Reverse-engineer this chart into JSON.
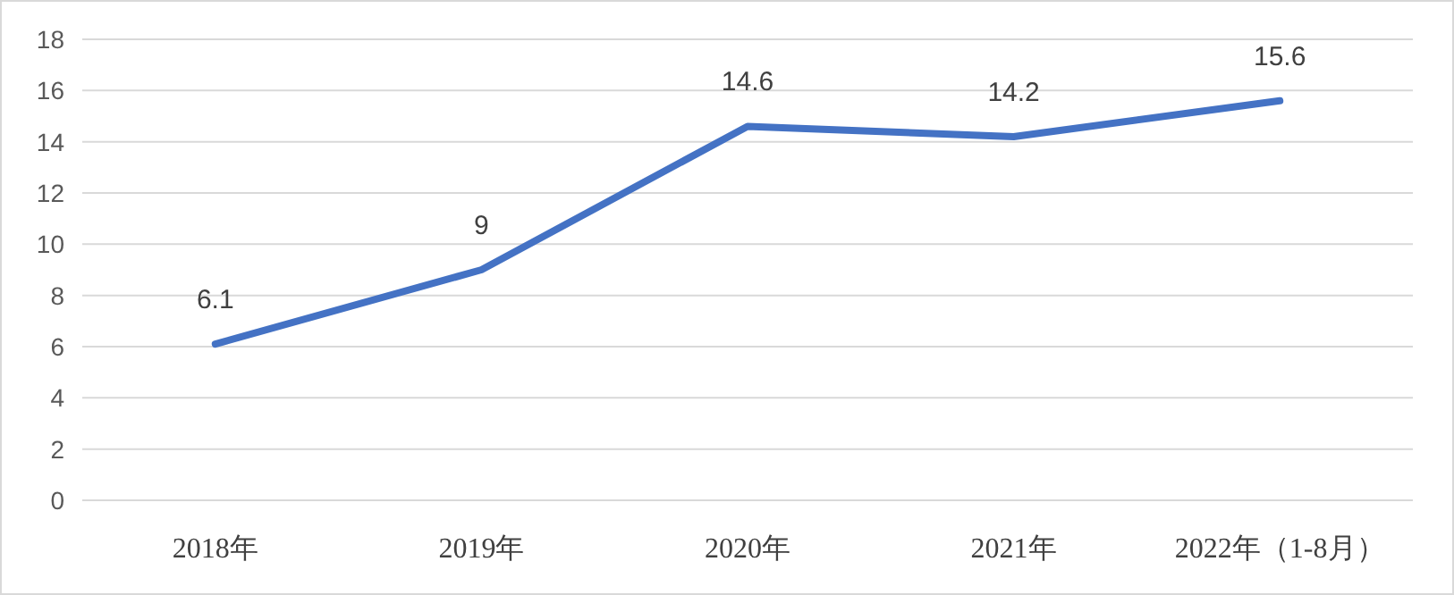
{
  "chart_data": {
    "type": "line",
    "categories": [
      "2018年",
      "2019年",
      "2020年",
      "2021年",
      "2022年（1-8月）"
    ],
    "series": [
      {
        "color": "#4472c4",
        "values": [
          6.1,
          9,
          14.6,
          14.2,
          15.6
        ]
      }
    ],
    "ylim": [
      0,
      18
    ],
    "yticks": [
      0,
      2,
      4,
      6,
      8,
      10,
      12,
      14,
      16,
      18
    ],
    "grid": "y",
    "data_labels": true,
    "marker": "none",
    "line_style": "solid"
  }
}
